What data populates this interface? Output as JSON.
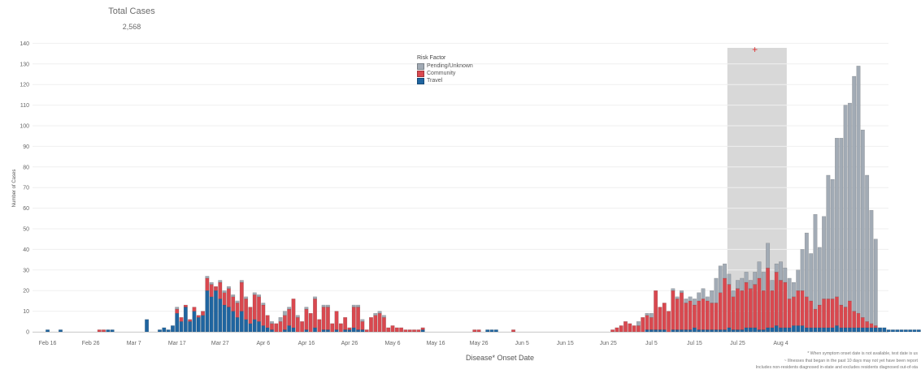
{
  "summary": {
    "label": "Total Cases",
    "value": "2,568"
  },
  "legend": {
    "title": "Risk Factor",
    "items": [
      {
        "name": "Pending/Unknown",
        "color": "#a2abb5"
      },
      {
        "name": "Community",
        "color": "#d9484f"
      },
      {
        "name": "Travel",
        "color": "#1f65a0"
      }
    ]
  },
  "notes": [
    "* When symptom onset date is not available, test date is us",
    "~ Illnesses that began in the past 10 days may not yet have been report",
    "Includes non-residents diagnosed in-state and excludes residents diagnosed out-of-sta"
  ],
  "colors": {
    "pending": "#a2abb5",
    "community": "#d9484f",
    "travel": "#1f65a0",
    "highlight": "#d8d8d8",
    "marker": "#e03030"
  },
  "chart_data": {
    "type": "bar",
    "stacked": true,
    "x_start": "2020-02-13",
    "xlabel": "Disease* Onset Date",
    "ylabel": "Number of Cases",
    "ylim": [
      0,
      145
    ],
    "yticks": [
      0,
      10,
      20,
      30,
      40,
      50,
      60,
      70,
      80,
      90,
      100,
      110,
      120,
      130,
      140
    ],
    "xticks": [
      "Feb 16",
      "Feb 26",
      "Mar 7",
      "Mar 17",
      "Mar 27",
      "Apr 6",
      "Apr 16",
      "Apr 26",
      "May 6",
      "May 16",
      "May 26",
      "Jun 5",
      "Jun 15",
      "Jun 25",
      "Jul 5",
      "Jul 15",
      "Jul 25",
      "Aug 4"
    ],
    "highlight_range": [
      "Jul 25",
      "Aug 4"
    ],
    "marker": {
      "date": "2020-07-29",
      "value": 137,
      "symbol": "+"
    },
    "series": [
      {
        "name": "Travel",
        "values": [
          0,
          0,
          0,
          1,
          0,
          0,
          1,
          0,
          0,
          0,
          0,
          0,
          0,
          0,
          0,
          0,
          0,
          1,
          1,
          0,
          0,
          0,
          0,
          0,
          0,
          0,
          6,
          0,
          0,
          1,
          2,
          1,
          3,
          9,
          5,
          12,
          5,
          10,
          7,
          8,
          20,
          17,
          20,
          16,
          13,
          12,
          10,
          7,
          10,
          6,
          4,
          6,
          5,
          3,
          2,
          1,
          0,
          0,
          1,
          3,
          2,
          0,
          0,
          1,
          0,
          2,
          0,
          1,
          1,
          0,
          1,
          0,
          1,
          1,
          2,
          1,
          1,
          0,
          0,
          0,
          0,
          0,
          0,
          0,
          0,
          0,
          0,
          0,
          0,
          0,
          1,
          0,
          0,
          0,
          0,
          0,
          0,
          0,
          0,
          0,
          0,
          0,
          0,
          0,
          0,
          1,
          1,
          1,
          0,
          0,
          0,
          0,
          0,
          0,
          0,
          0,
          0,
          0,
          0,
          0,
          0,
          0,
          0,
          0,
          0,
          0,
          0,
          0,
          0,
          0,
          0,
          0,
          0,
          0,
          0,
          0,
          0,
          0,
          0,
          0,
          0,
          0,
          1,
          1,
          1,
          1,
          1,
          0,
          1,
          1,
          1,
          1,
          1,
          2,
          1,
          1,
          1,
          1,
          1,
          1,
          1,
          2,
          1,
          1,
          1,
          2,
          2,
          2,
          1,
          1,
          2,
          2,
          3,
          2,
          2,
          2,
          3,
          3,
          3,
          2,
          2,
          2,
          2,
          2,
          2,
          2,
          3,
          2,
          2,
          2,
          2,
          2,
          2,
          2,
          2,
          2,
          2,
          2,
          1,
          1,
          1,
          1,
          1,
          1,
          1,
          1,
          1,
          1
        ]
      },
      {
        "name": "Community",
        "values": [
          0,
          0,
          0,
          0,
          0,
          0,
          0,
          0,
          0,
          0,
          0,
          0,
          0,
          0,
          0,
          1,
          1,
          0,
          0,
          0,
          0,
          0,
          0,
          0,
          0,
          0,
          0,
          0,
          0,
          0,
          0,
          0,
          0,
          2,
          2,
          1,
          1,
          2,
          1,
          2,
          6,
          6,
          2,
          8,
          6,
          9,
          7,
          7,
          14,
          10,
          8,
          12,
          12,
          10,
          6,
          3,
          4,
          5,
          7,
          8,
          14,
          7,
          5,
          10,
          9,
          14,
          6,
          11,
          11,
          4,
          9,
          4,
          6,
          1,
          10,
          11,
          4,
          1,
          7,
          8,
          9,
          7,
          2,
          3,
          2,
          2,
          1,
          1,
          1,
          1,
          1,
          0,
          0,
          0,
          0,
          0,
          0,
          0,
          0,
          0,
          0,
          0,
          1,
          1,
          0,
          0,
          0,
          0,
          0,
          0,
          0,
          1,
          0,
          0,
          0,
          0,
          0,
          0,
          0,
          0,
          0,
          0,
          0,
          0,
          0,
          0,
          0,
          0,
          0,
          0,
          0,
          0,
          0,
          0,
          1,
          2,
          3,
          5,
          4,
          3,
          3,
          7,
          7,
          6,
          19,
          11,
          13,
          10,
          19,
          15,
          18,
          13,
          14,
          11,
          14,
          15,
          14,
          13,
          13,
          18,
          25,
          21,
          16,
          20,
          19,
          22,
          19,
          21,
          25,
          19,
          29,
          18,
          26,
          23,
          22,
          14,
          14,
          17,
          17,
          15,
          13,
          9,
          11,
          14,
          14,
          14,
          14,
          11,
          10,
          13,
          8,
          7,
          5,
          3,
          2,
          1,
          0,
          0,
          0,
          0,
          0,
          0
        ]
      },
      {
        "name": "Pending/Unknown",
        "values": [
          0,
          0,
          0,
          0,
          0,
          0,
          0,
          0,
          0,
          0,
          0,
          0,
          0,
          0,
          0,
          0,
          0,
          0,
          0,
          0,
          0,
          0,
          0,
          0,
          0,
          0,
          0,
          0,
          0,
          0,
          0,
          0,
          0,
          1,
          0,
          0,
          0,
          0,
          0,
          0,
          1,
          1,
          0,
          1,
          1,
          1,
          1,
          1,
          1,
          1,
          0,
          1,
          1,
          1,
          0,
          1,
          0,
          2,
          2,
          1,
          0,
          1,
          0,
          1,
          0,
          1,
          0,
          1,
          1,
          0,
          0,
          0,
          0,
          0,
          1,
          1,
          1,
          0,
          0,
          1,
          1,
          1,
          0,
          0,
          0,
          0,
          0,
          0,
          0,
          0,
          0,
          0,
          0,
          0,
          0,
          0,
          0,
          0,
          0,
          0,
          0,
          0,
          0,
          0,
          0,
          0,
          0,
          0,
          0,
          0,
          0,
          0,
          0,
          0,
          0,
          0,
          0,
          0,
          0,
          0,
          0,
          0,
          0,
          0,
          0,
          0,
          0,
          0,
          0,
          0,
          0,
          0,
          0,
          0,
          0,
          0,
          0,
          0,
          0,
          0,
          2,
          0,
          1,
          2,
          0,
          0,
          0,
          0,
          1,
          1,
          1,
          2,
          2,
          3,
          4,
          5,
          2,
          6,
          12,
          13,
          7,
          5,
          3,
          4,
          6,
          5,
          4,
          6,
          8,
          9,
          12,
          5,
          4,
          9,
          7,
          10,
          7,
          10,
          20,
          31,
          23,
          46,
          28,
          40,
          60,
          58,
          77,
          81,
          98,
          96,
          114,
          120,
          91,
          71,
          55,
          42
        ]
      }
    ]
  }
}
